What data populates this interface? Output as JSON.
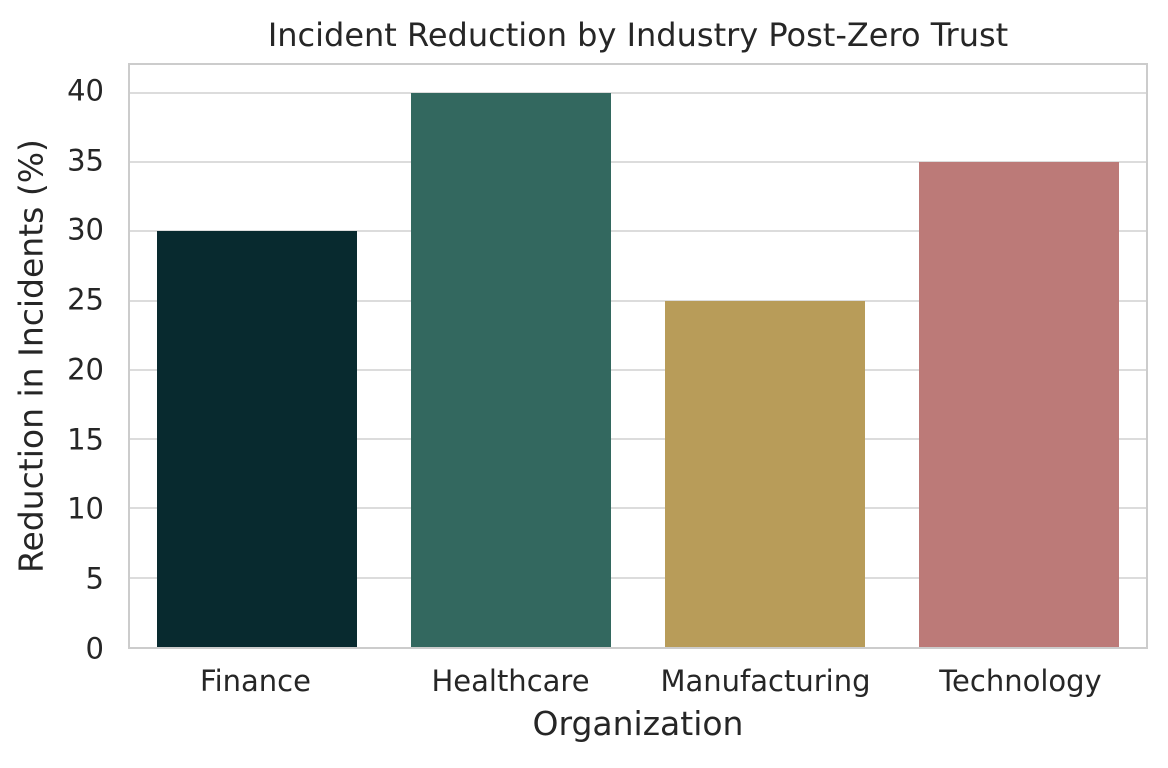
{
  "figure": {
    "background_color": "#ffffff",
    "text_color": "#262626",
    "grid_color": "#dcdcdc",
    "spine_color": "#cccccc"
  },
  "chart_data": {
    "type": "bar",
    "title": "Incident Reduction by Industry Post-Zero Trust",
    "xlabel": "Organization",
    "ylabel": "Reduction in Incidents (%)",
    "categories": [
      "Finance",
      "Healthcare",
      "Manufacturing",
      "Technology"
    ],
    "values": [
      30,
      40,
      25,
      35
    ],
    "bar_colors": [
      "#082a2f",
      "#33685f",
      "#b89c59",
      "#bc7a78"
    ],
    "ylim": [
      0,
      40
    ],
    "yticks": [
      0,
      5,
      10,
      15,
      20,
      25,
      30,
      35,
      40
    ],
    "grid": "horizontal",
    "legend_position": "none"
  }
}
